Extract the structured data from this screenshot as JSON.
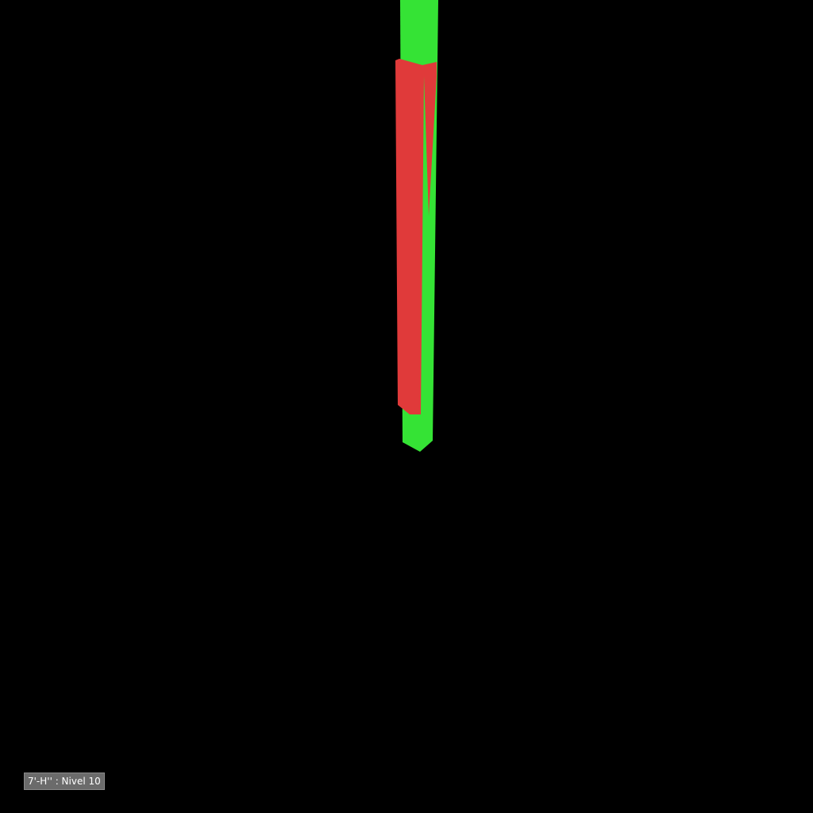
{
  "viewport": {
    "background_color": "#000000",
    "level_label": "7'-H'' : Nivel 10"
  },
  "elements": {
    "green_element_color": "#35e335",
    "red_element_color": "#e03a3a"
  }
}
